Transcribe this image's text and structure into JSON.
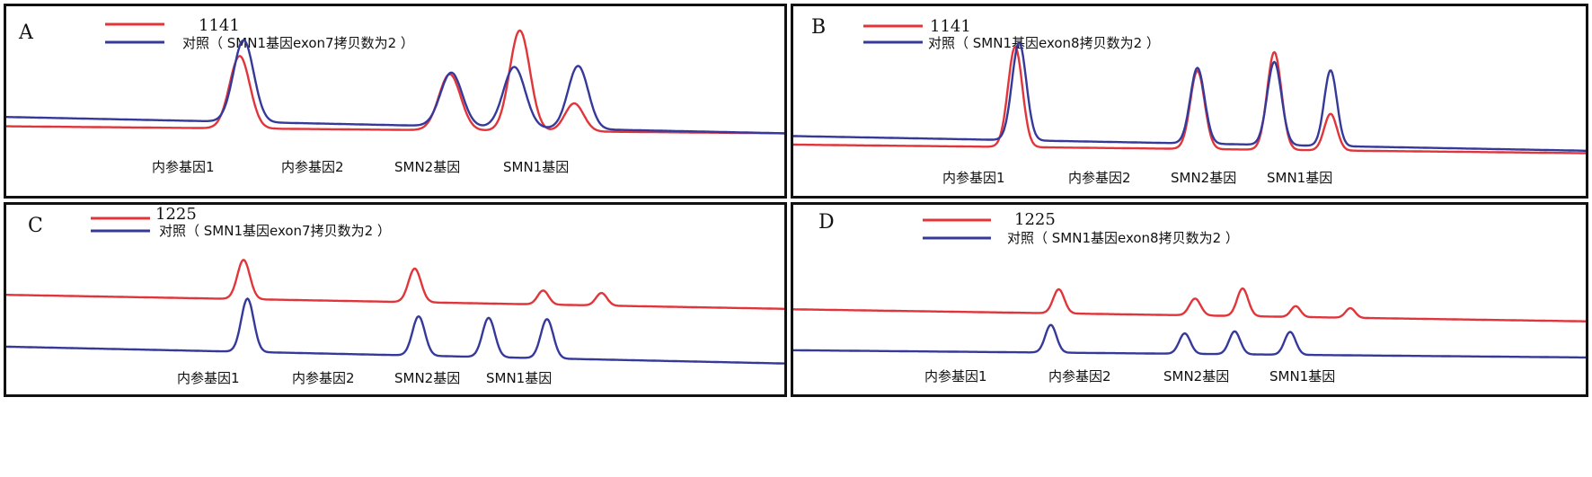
{
  "colors": {
    "sample": "#e0353a",
    "control": "#35399a",
    "border": "#111111"
  },
  "chart_data": [
    {
      "type": "line",
      "panel_label": "A",
      "layout": "overlay",
      "legend": [
        "1141",
        "对照（ SMN1基因exon7拷贝数为2 ）"
      ],
      "peak_labels": [
        "内参基因1",
        "内参基因2",
        "SMN2基因",
        "SMN1基因"
      ],
      "series": [
        {
          "name": "1141",
          "color": "#e0353a",
          "baseline_start": 0.28,
          "baseline_end": 0.22,
          "peaks": [
            {
              "x": 0.3,
              "h": 0.62,
              "w": 0.013
            },
            {
              "x": 0.57,
              "h": 0.48,
              "w": 0.014
            },
            {
              "x": 0.66,
              "h": 0.86,
              "w": 0.013
            },
            {
              "x": 0.73,
              "h": 0.24,
              "w": 0.012
            }
          ]
        },
        {
          "name": "对照（ SMN1基因exon7拷贝数为2 ）",
          "color": "#35399a",
          "baseline_start": 0.36,
          "baseline_end": 0.22,
          "peaks": [
            {
              "x": 0.305,
              "h": 0.7,
              "w": 0.013
            },
            {
              "x": 0.572,
              "h": 0.46,
              "w": 0.014
            },
            {
              "x": 0.653,
              "h": 0.52,
              "w": 0.014
            },
            {
              "x": 0.735,
              "h": 0.54,
              "w": 0.013
            }
          ]
        }
      ]
    },
    {
      "type": "line",
      "panel_label": "B",
      "layout": "overlay",
      "legend": [
        "1141",
        "对照（ SMN1基因exon8拷贝数为2 ）"
      ],
      "peak_labels": [
        "内参基因1",
        "内参基因2",
        "SMN2基因",
        "SMN1基因"
      ],
      "series": [
        {
          "name": "1141",
          "color": "#e0353a",
          "baseline_start": 0.25,
          "baseline_end": 0.18,
          "peaks": [
            {
              "x": 0.28,
              "h": 0.82,
              "w": 0.009
            },
            {
              "x": 0.51,
              "h": 0.64,
              "w": 0.009
            },
            {
              "x": 0.607,
              "h": 0.8,
              "w": 0.009
            },
            {
              "x": 0.678,
              "h": 0.3,
              "w": 0.008
            }
          ]
        },
        {
          "name": "对照（ SMN1基因exon8拷贝数为2 ）",
          "color": "#35399a",
          "baseline_start": 0.32,
          "baseline_end": 0.2,
          "peaks": [
            {
              "x": 0.285,
              "h": 0.8,
              "w": 0.009
            },
            {
              "x": 0.51,
              "h": 0.62,
              "w": 0.009
            },
            {
              "x": 0.607,
              "h": 0.68,
              "w": 0.009
            },
            {
              "x": 0.678,
              "h": 0.62,
              "w": 0.008
            }
          ]
        }
      ]
    },
    {
      "type": "line",
      "panel_label": "C",
      "layout": "stacked",
      "legend": [
        "1225",
        "对照（ SMN1基因exon7拷贝数为2 ）"
      ],
      "peak_labels": [
        "内参基因1",
        "内参基因2",
        "SMN2基因",
        "SMN1基因"
      ],
      "series": [
        {
          "name": "1225",
          "color": "#e0353a",
          "baseline_start": 0.55,
          "baseline_end": 0.45,
          "peaks": [
            {
              "x": 0.305,
              "h": 0.28,
              "w": 0.008
            },
            {
              "x": 0.525,
              "h": 0.24,
              "w": 0.008
            },
            {
              "x": 0.69,
              "h": 0.1,
              "w": 0.007
            },
            {
              "x": 0.765,
              "h": 0.09,
              "w": 0.007
            }
          ]
        },
        {
          "name": "对照（ SMN1基因exon7拷贝数为2 ）",
          "color": "#35399a",
          "baseline_start": 0.18,
          "baseline_end": 0.06,
          "peaks": [
            {
              "x": 0.31,
              "h": 0.38,
              "w": 0.008
            },
            {
              "x": 0.53,
              "h": 0.28,
              "w": 0.008
            },
            {
              "x": 0.62,
              "h": 0.28,
              "w": 0.008
            },
            {
              "x": 0.695,
              "h": 0.28,
              "w": 0.008
            }
          ]
        }
      ]
    },
    {
      "type": "line",
      "panel_label": "D",
      "layout": "stacked",
      "legend": [
        "1225",
        "对照（ SMN1基因exon8拷贝数为2 ）"
      ],
      "peak_labels": [
        "内参基因1",
        "内参基因2",
        "SMN2基因",
        "SMN1基因"
      ],
      "series": [
        {
          "name": "1225",
          "color": "#e0353a",
          "baseline_start": 0.52,
          "baseline_end": 0.42,
          "peaks": [
            {
              "x": 0.335,
              "h": 0.2,
              "w": 0.007
            },
            {
              "x": 0.507,
              "h": 0.14,
              "w": 0.007
            },
            {
              "x": 0.567,
              "h": 0.23,
              "w": 0.007
            },
            {
              "x": 0.634,
              "h": 0.09,
              "w": 0.006
            },
            {
              "x": 0.703,
              "h": 0.08,
              "w": 0.006
            }
          ]
        },
        {
          "name": "对照（ SMN1基因exon8拷贝数为2 ）",
          "color": "#35399a",
          "baseline_start": 0.18,
          "baseline_end": 0.12,
          "peaks": [
            {
              "x": 0.325,
              "h": 0.23,
              "w": 0.007
            },
            {
              "x": 0.494,
              "h": 0.17,
              "w": 0.007
            },
            {
              "x": 0.557,
              "h": 0.19,
              "w": 0.007
            },
            {
              "x": 0.627,
              "h": 0.19,
              "w": 0.007
            }
          ]
        }
      ]
    }
  ]
}
